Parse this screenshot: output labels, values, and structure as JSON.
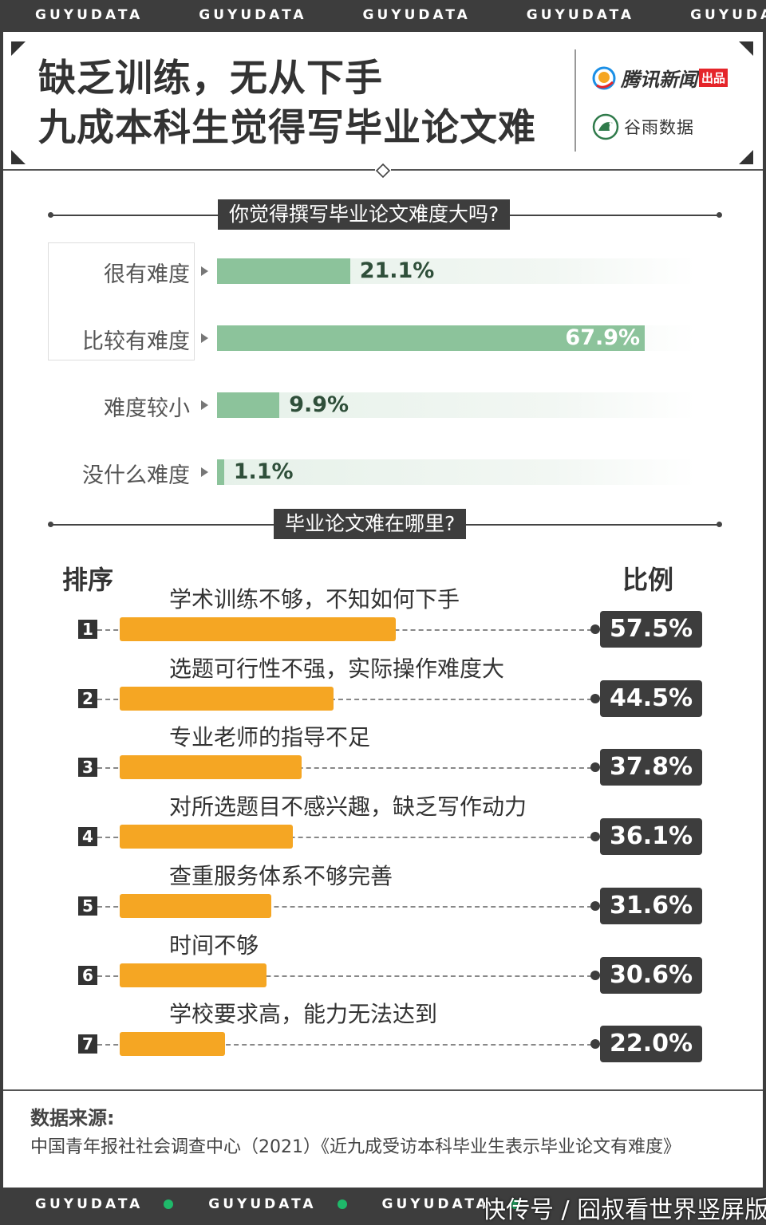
{
  "banner": {
    "word": "GUYUDATA"
  },
  "header": {
    "title_line1": "缺乏训练，无从下手",
    "title_line2": "九成本科生觉得写毕业论文难",
    "brand1": "腾讯新闻",
    "brand1_tag": "出品",
    "brand2": "谷雨数据"
  },
  "section1": {
    "title": "你觉得撰写毕业论文难度大吗?"
  },
  "section2": {
    "title": "毕业论文难在哪里?",
    "col_rank": "排序",
    "col_ratio": "比例"
  },
  "chart_data": [
    {
      "type": "bar",
      "title": "你觉得撰写毕业论文难度大吗?",
      "categories": [
        "很有难度",
        "比较有难度",
        "难度较小",
        "没什么难度"
      ],
      "values": [
        21.1,
        67.9,
        9.9,
        1.1
      ],
      "labels": [
        "21.1%",
        "67.9%",
        "9.9%",
        "1.1%"
      ],
      "unit": "%",
      "highlight_categories": [
        "很有难度",
        "比较有难度"
      ],
      "colors": {
        "fill": "#8cc39b",
        "track": "#e6f1e9"
      }
    },
    {
      "type": "bar",
      "title": "毕业论文难在哪里?",
      "ranks": [
        "1",
        "2",
        "3",
        "4",
        "5",
        "6",
        "7"
      ],
      "categories": [
        "学术训练不够，不知如何下手",
        "选题可行性不强，实际操作难度大",
        "专业老师的指导不足",
        "对所选题目不感兴趣，缺乏写作动力",
        "查重服务体系不够完善",
        "时间不够",
        "学校要求高，能力无法达到"
      ],
      "values": [
        57.5,
        44.5,
        37.8,
        36.1,
        31.6,
        30.6,
        22.0
      ],
      "labels": [
        "57.5%",
        "44.5%",
        "37.8%",
        "36.1%",
        "31.6%",
        "30.6%",
        "22.0%"
      ],
      "unit": "%",
      "colors": {
        "bar": "#f5a623",
        "pill": "#3d3d3d"
      }
    }
  ],
  "source": {
    "heading": "数据来源:",
    "text": "中国青年报社社会调查中心（2021）《近九成受访本科毕业生表示毕业论文有难度》"
  },
  "watermark": "快传号 / 囧叔看世界竖屏版"
}
